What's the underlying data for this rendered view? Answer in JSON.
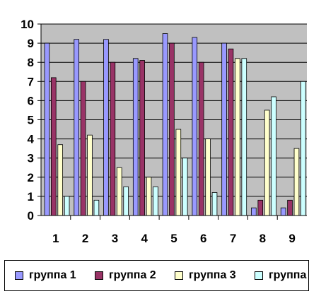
{
  "chart_data": {
    "type": "bar",
    "categories": [
      "1",
      "2",
      "3",
      "4",
      "5",
      "6",
      "7",
      "8",
      "9"
    ],
    "series": [
      {
        "name": "группа 1",
        "color": "#9999FF",
        "values": [
          9,
          9.2,
          9.2,
          8.2,
          9.5,
          9.3,
          9,
          0.4,
          0.4
        ]
      },
      {
        "name": "группа 2",
        "color": "#993366",
        "values": [
          7.2,
          7,
          8,
          8.1,
          9,
          8,
          8.7,
          0.8,
          0.8
        ]
      },
      {
        "name": "группа 3",
        "color": "#FFFFCC",
        "values": [
          3.7,
          4.2,
          2.5,
          2,
          4.5,
          4,
          8.2,
          5.5,
          3.5
        ]
      },
      {
        "name": "группа",
        "color": "#CCFFFF",
        "values": [
          1,
          0.8,
          1.5,
          1.5,
          3,
          1.2,
          8.2,
          6.2,
          7
        ]
      }
    ],
    "yticks": [
      "0",
      "1",
      "2",
      "3",
      "4",
      "5",
      "6",
      "7",
      "8",
      "9",
      "10"
    ],
    "ylim": [
      0,
      10
    ],
    "grid": true,
    "legend_position": "bottom",
    "plot_background": "#C0C0C0"
  }
}
